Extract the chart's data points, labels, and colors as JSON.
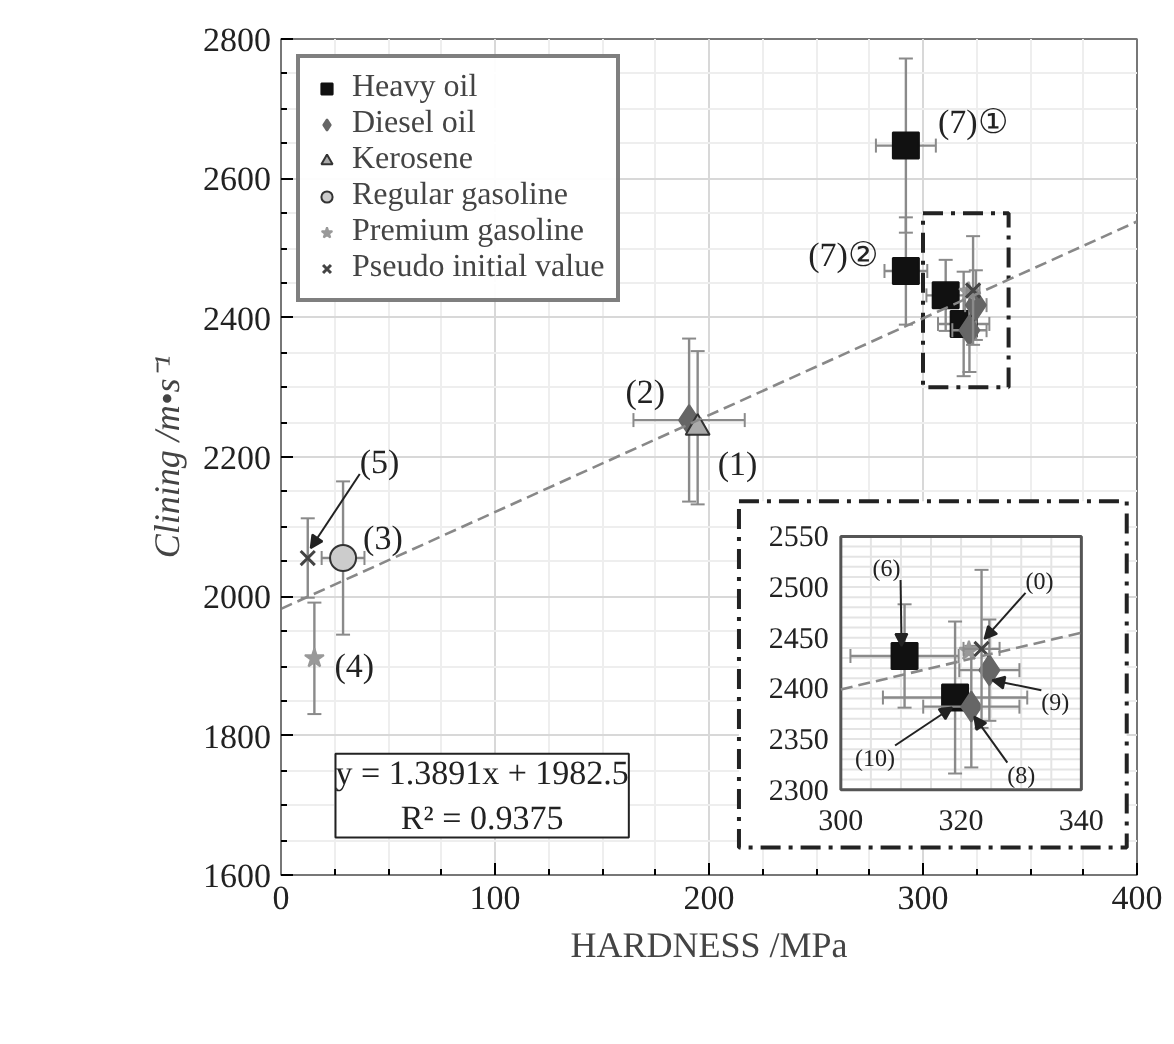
{
  "chart_data": [
    {
      "type": "scatter",
      "xlabel": "HARDNESS /MPa",
      "ylabel": "Clining /m•s⁻¹",
      "xlim": [
        0,
        400
      ],
      "ylim": [
        1600,
        2800
      ],
      "xticks": [
        0,
        100,
        200,
        300,
        400
      ],
      "yticks": [
        1600,
        1800,
        2000,
        2200,
        2400,
        2600,
        2800
      ],
      "grid": true,
      "legend": "top left",
      "series": [
        {
          "name": "Heavy oil",
          "color": "#111111",
          "marker": "square",
          "x": [
            292,
            292,
            310.6,
            319
          ],
          "values": [
            2647,
            2467,
            2432,
            2391
          ],
          "errors": [
            125,
            77,
            51,
            75
          ],
          "xerrors": [
            14,
            10,
            9,
            12
          ]
        },
        {
          "name": "Diesel oil",
          "color": "#666666",
          "marker": "diamond",
          "x": [
            190.7,
            321.7,
            324.7
          ],
          "values": [
            2253,
            2382,
            2418
          ],
          "errors": [
            117,
            60,
            50
          ],
          "xerrors": [
            26,
            8,
            5
          ]
        },
        {
          "name": "Kerosene",
          "color": "#aaaaaa",
          "marker": "triangle",
          "x": [
            194.7
          ],
          "values": [
            2242
          ],
          "errors": [
            110
          ]
        },
        {
          "name": "Regular gasoline",
          "color": "#cccccc",
          "marker": "circle",
          "x": [
            29
          ],
          "values": [
            2055
          ],
          "errors": [
            110
          ],
          "xerrors": [
            10
          ]
        },
        {
          "name": "Premium gasoline",
          "color": "#999999",
          "marker": "star",
          "x": [
            15.6,
            321.3
          ],
          "values": [
            1911,
            2437
          ],
          "errors": [
            80,
            null
          ]
        },
        {
          "name": "Pseudo initial value",
          "color": "#444444",
          "marker": "cross",
          "x": [
            12.5,
            323.4
          ],
          "values": [
            2055,
            2439
          ],
          "errors": [
            57,
            78
          ],
          "xerrors": [
            null,
            3
          ]
        },
        {
          "type": "line",
          "color": "#888888",
          "line_style": "dashed",
          "x": [
            0,
            400
          ],
          "values": [
            1982,
            2538
          ]
        }
      ],
      "annotations": [
        {
          "text": "(7)①",
          "x": 292,
          "y": 2647
        },
        {
          "text": "(7)②",
          "x": 292,
          "y": 2467
        },
        {
          "text": "(2)",
          "x": 190.7,
          "y": 2253
        },
        {
          "text": "(1)",
          "x": 194.7,
          "y": 2242
        },
        {
          "text": "(3)",
          "x": 29,
          "y": 2055
        },
        {
          "text": "(4)",
          "x": 15.6,
          "y": 1911
        },
        {
          "text": "(5)",
          "x": 12.5,
          "y": 2055
        },
        "y = 1.3891x + 1982.5",
        "R² = 0.9375"
      ]
    },
    {
      "type": "scatter",
      "xlim": [
        300,
        340
      ],
      "ylim": [
        2300,
        2550
      ],
      "xticks": [
        300,
        320,
        340
      ],
      "yticks": [
        2300,
        2350,
        2400,
        2450,
        2500,
        2550
      ],
      "grid": true,
      "series": [
        {
          "color": "#111111",
          "marker": "square",
          "x": [
            310.6,
            319
          ],
          "values": [
            2432,
            2391
          ],
          "errors": [
            51,
            75
          ],
          "xerrors": [
            9,
            12
          ]
        },
        {
          "color": "#666666",
          "marker": "diamond",
          "x": [
            321.7,
            324.7
          ],
          "values": [
            2382,
            2418
          ],
          "errors": [
            60,
            50
          ],
          "xerrors": [
            8,
            5
          ]
        },
        {
          "color": "#999999",
          "marker": "star",
          "x": [
            321.3
          ],
          "values": [
            2437
          ]
        },
        {
          "color": "#444444",
          "marker": "cross",
          "x": [
            323.4
          ],
          "values": [
            2439
          ],
          "errors": [
            78
          ],
          "xerrors": [
            3
          ]
        },
        {
          "type": "line",
          "color": "#888888",
          "line_style": "dashed",
          "x": [
            300,
            340
          ],
          "values": [
            2399,
            2455
          ]
        }
      ],
      "annotations": [
        {
          "text": "(6)",
          "x": 310.6,
          "y": 2432
        },
        {
          "text": "(0)",
          "x": 323.4,
          "y": 2439
        },
        {
          "text": "(9)",
          "x": 324.7,
          "y": 2418
        },
        {
          "text": "(10)",
          "x": 319,
          "y": 2391
        },
        {
          "text": "(8)",
          "x": 321.7,
          "y": 2382
        }
      ]
    }
  ]
}
